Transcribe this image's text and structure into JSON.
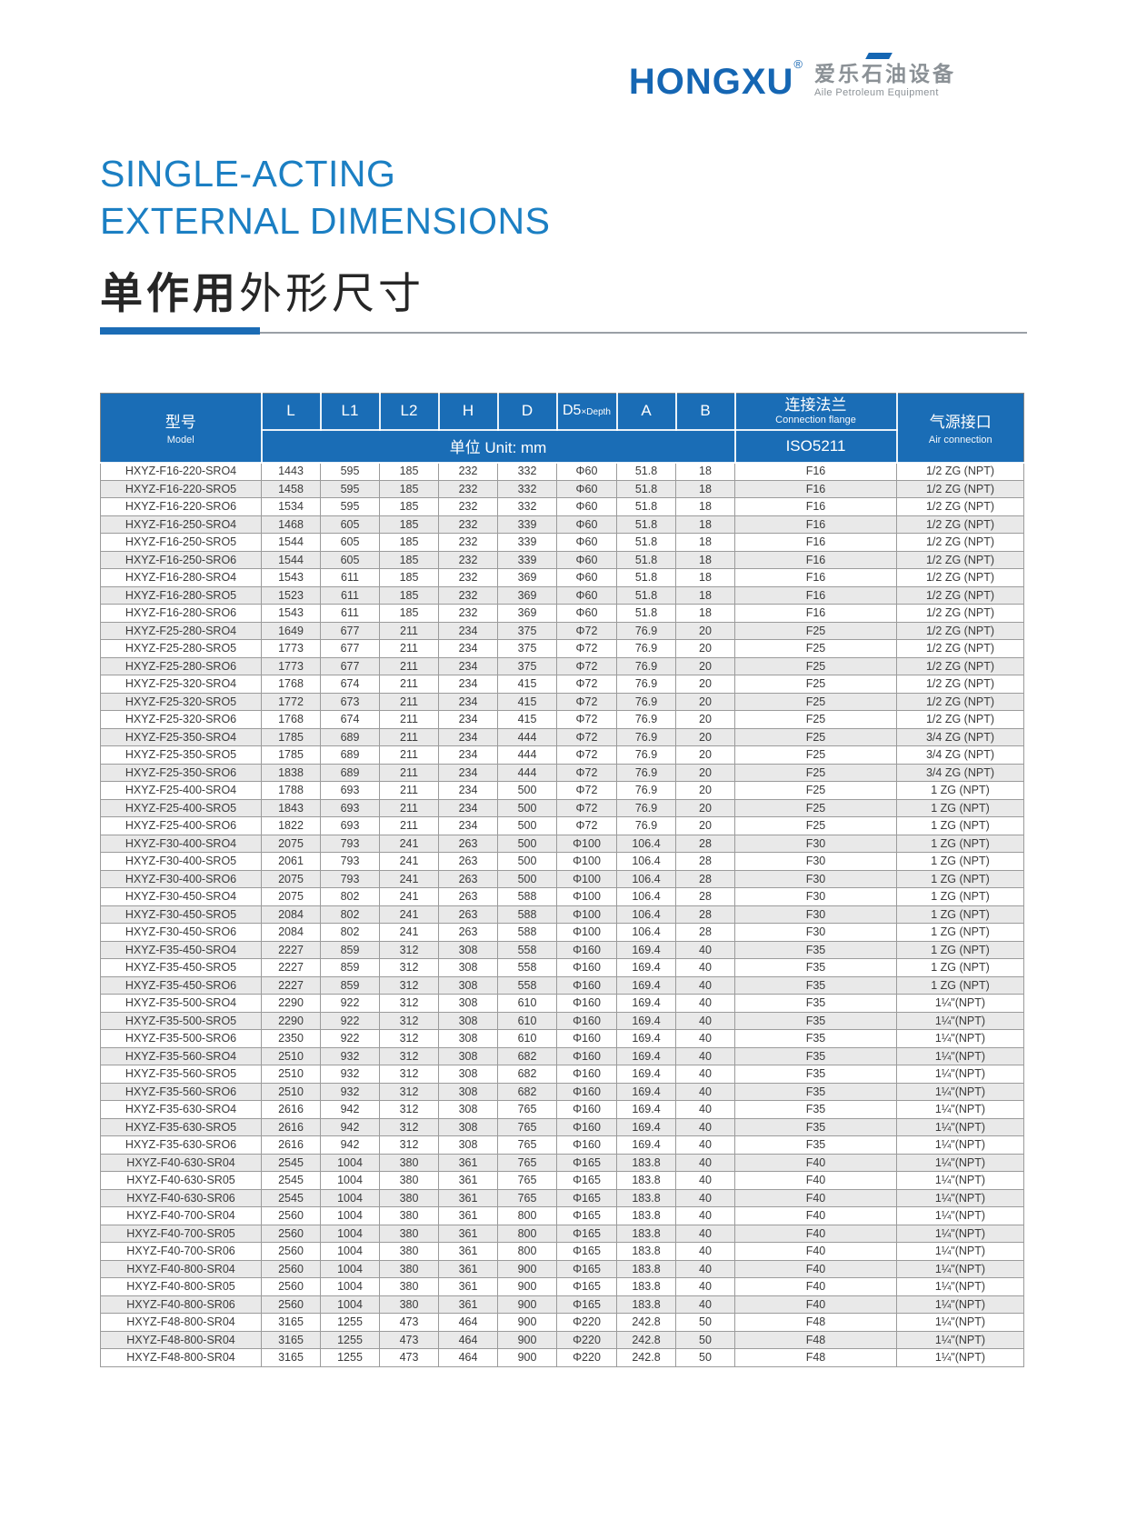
{
  "logo": {
    "brand": "HONGXU",
    "registered": "®",
    "cn": "爱乐石油设备",
    "en": "Aile Petroleum Equipment"
  },
  "title": {
    "line1": "SINGLE-ACTING",
    "line2": "EXTERNAL DIMENSIONS",
    "cn_bold": "单作用",
    "cn_rest": "外形尺寸"
  },
  "colors": {
    "title_blue": "#1b7fc3",
    "header_blue": "#1a6db6",
    "brand_blue": "#1566b3",
    "row_alt": "#e9e9e9"
  },
  "table": {
    "header": {
      "model_cn": "型号",
      "model_en": "Model",
      "dims": [
        "L",
        "L1",
        "L2",
        "H",
        "D"
      ],
      "d5_main": "D5",
      "d5_sub": "×Depth",
      "a": "A",
      "b": "B",
      "flange_cn": "连接法兰",
      "flange_en": "Connection flange",
      "air_cn": "气源接口",
      "air_en": "Air connection",
      "unit": "单位 Unit: mm",
      "iso": "ISO5211"
    },
    "rows": [
      [
        "HXYZ-F16-220-SRO4",
        "1443",
        "595",
        "185",
        "232",
        "332",
        "Φ60",
        "51.8",
        "18",
        "F16",
        "1/2 ZG (NPT)"
      ],
      [
        "HXYZ-F16-220-SRO5",
        "1458",
        "595",
        "185",
        "232",
        "332",
        "Φ60",
        "51.8",
        "18",
        "F16",
        "1/2 ZG (NPT)"
      ],
      [
        "HXYZ-F16-220-SRO6",
        "1534",
        "595",
        "185",
        "232",
        "332",
        "Φ60",
        "51.8",
        "18",
        "F16",
        "1/2 ZG (NPT)"
      ],
      [
        "HXYZ-F16-250-SRO4",
        "1468",
        "605",
        "185",
        "232",
        "339",
        "Φ60",
        "51.8",
        "18",
        "F16",
        "1/2 ZG (NPT)"
      ],
      [
        "HXYZ-F16-250-SRO5",
        "1544",
        "605",
        "185",
        "232",
        "339",
        "Φ60",
        "51.8",
        "18",
        "F16",
        "1/2 ZG (NPT)"
      ],
      [
        "HXYZ-F16-250-SRO6",
        "1544",
        "605",
        "185",
        "232",
        "339",
        "Φ60",
        "51.8",
        "18",
        "F16",
        "1/2 ZG (NPT)"
      ],
      [
        "HXYZ-F16-280-SRO4",
        "1543",
        "611",
        "185",
        "232",
        "369",
        "Φ60",
        "51.8",
        "18",
        "F16",
        "1/2 ZG (NPT)"
      ],
      [
        "HXYZ-F16-280-SRO5",
        "1523",
        "611",
        "185",
        "232",
        "369",
        "Φ60",
        "51.8",
        "18",
        "F16",
        "1/2 ZG (NPT)"
      ],
      [
        "HXYZ-F16-280-SRO6",
        "1543",
        "611",
        "185",
        "232",
        "369",
        "Φ60",
        "51.8",
        "18",
        "F16",
        "1/2 ZG (NPT)"
      ],
      [
        "HXYZ-F25-280-SRO4",
        "1649",
        "677",
        "211",
        "234",
        "375",
        "Φ72",
        "76.9",
        "20",
        "F25",
        "1/2 ZG (NPT)"
      ],
      [
        "HXYZ-F25-280-SRO5",
        "1773",
        "677",
        "211",
        "234",
        "375",
        "Φ72",
        "76.9",
        "20",
        "F25",
        "1/2 ZG (NPT)"
      ],
      [
        "HXYZ-F25-280-SRO6",
        "1773",
        "677",
        "211",
        "234",
        "375",
        "Φ72",
        "76.9",
        "20",
        "F25",
        "1/2 ZG (NPT)"
      ],
      [
        "HXYZ-F25-320-SRO4",
        "1768",
        "674",
        "211",
        "234",
        "415",
        "Φ72",
        "76.9",
        "20",
        "F25",
        "1/2 ZG (NPT)"
      ],
      [
        "HXYZ-F25-320-SRO5",
        "1772",
        "673",
        "211",
        "234",
        "415",
        "Φ72",
        "76.9",
        "20",
        "F25",
        "1/2 ZG (NPT)"
      ],
      [
        "HXYZ-F25-320-SRO6",
        "1768",
        "674",
        "211",
        "234",
        "415",
        "Φ72",
        "76.9",
        "20",
        "F25",
        "1/2 ZG (NPT)"
      ],
      [
        "HXYZ-F25-350-SRO4",
        "1785",
        "689",
        "211",
        "234",
        "444",
        "Φ72",
        "76.9",
        "20",
        "F25",
        "3/4 ZG (NPT)"
      ],
      [
        "HXYZ-F25-350-SRO5",
        "1785",
        "689",
        "211",
        "234",
        "444",
        "Φ72",
        "76.9",
        "20",
        "F25",
        "3/4 ZG (NPT)"
      ],
      [
        "HXYZ-F25-350-SRO6",
        "1838",
        "689",
        "211",
        "234",
        "444",
        "Φ72",
        "76.9",
        "20",
        "F25",
        "3/4 ZG (NPT)"
      ],
      [
        "HXYZ-F25-400-SRO4",
        "1788",
        "693",
        "211",
        "234",
        "500",
        "Φ72",
        "76.9",
        "20",
        "F25",
        "1 ZG (NPT)"
      ],
      [
        "HXYZ-F25-400-SRO5",
        "1843",
        "693",
        "211",
        "234",
        "500",
        "Φ72",
        "76.9",
        "20",
        "F25",
        "1 ZG (NPT)"
      ],
      [
        "HXYZ-F25-400-SRO6",
        "1822",
        "693",
        "211",
        "234",
        "500",
        "Φ72",
        "76.9",
        "20",
        "F25",
        "1 ZG (NPT)"
      ],
      [
        "HXYZ-F30-400-SRO4",
        "2075",
        "793",
        "241",
        "263",
        "500",
        "Φ100",
        "106.4",
        "28",
        "F30",
        "1 ZG (NPT)"
      ],
      [
        "HXYZ-F30-400-SRO5",
        "2061",
        "793",
        "241",
        "263",
        "500",
        "Φ100",
        "106.4",
        "28",
        "F30",
        "1 ZG (NPT)"
      ],
      [
        "HXYZ-F30-400-SRO6",
        "2075",
        "793",
        "241",
        "263",
        "500",
        "Φ100",
        "106.4",
        "28",
        "F30",
        "1 ZG (NPT)"
      ],
      [
        "HXYZ-F30-450-SRO4",
        "2075",
        "802",
        "241",
        "263",
        "588",
        "Φ100",
        "106.4",
        "28",
        "F30",
        "1 ZG (NPT)"
      ],
      [
        "HXYZ-F30-450-SRO5",
        "2084",
        "802",
        "241",
        "263",
        "588",
        "Φ100",
        "106.4",
        "28",
        "F30",
        "1 ZG (NPT)"
      ],
      [
        "HXYZ-F30-450-SRO6",
        "2084",
        "802",
        "241",
        "263",
        "588",
        "Φ100",
        "106.4",
        "28",
        "F30",
        "1 ZG (NPT)"
      ],
      [
        "HXYZ-F35-450-SRO4",
        "2227",
        "859",
        "312",
        "308",
        "558",
        "Φ160",
        "169.4",
        "40",
        "F35",
        "1 ZG (NPT)"
      ],
      [
        "HXYZ-F35-450-SRO5",
        "2227",
        "859",
        "312",
        "308",
        "558",
        "Φ160",
        "169.4",
        "40",
        "F35",
        "1 ZG (NPT)"
      ],
      [
        "HXYZ-F35-450-SRO6",
        "2227",
        "859",
        "312",
        "308",
        "558",
        "Φ160",
        "169.4",
        "40",
        "F35",
        "1 ZG (NPT)"
      ],
      [
        "HXYZ-F35-500-SRO4",
        "2290",
        "922",
        "312",
        "308",
        "610",
        "Φ160",
        "169.4",
        "40",
        "F35",
        "1¼\"(NPT)"
      ],
      [
        "HXYZ-F35-500-SRO5",
        "2290",
        "922",
        "312",
        "308",
        "610",
        "Φ160",
        "169.4",
        "40",
        "F35",
        "1¼\"(NPT)"
      ],
      [
        "HXYZ-F35-500-SRO6",
        "2350",
        "922",
        "312",
        "308",
        "610",
        "Φ160",
        "169.4",
        "40",
        "F35",
        "1¼\"(NPT)"
      ],
      [
        "HXYZ-F35-560-SRO4",
        "2510",
        "932",
        "312",
        "308",
        "682",
        "Φ160",
        "169.4",
        "40",
        "F35",
        "1¼\"(NPT)"
      ],
      [
        "HXYZ-F35-560-SRO5",
        "2510",
        "932",
        "312",
        "308",
        "682",
        "Φ160",
        "169.4",
        "40",
        "F35",
        "1¼\"(NPT)"
      ],
      [
        "HXYZ-F35-560-SRO6",
        "2510",
        "932",
        "312",
        "308",
        "682",
        "Φ160",
        "169.4",
        "40",
        "F35",
        "1¼\"(NPT)"
      ],
      [
        "HXYZ-F35-630-SRO4",
        "2616",
        "942",
        "312",
        "308",
        "765",
        "Φ160",
        "169.4",
        "40",
        "F35",
        "1¼\"(NPT)"
      ],
      [
        "HXYZ-F35-630-SRO5",
        "2616",
        "942",
        "312",
        "308",
        "765",
        "Φ160",
        "169.4",
        "40",
        "F35",
        "1¼\"(NPT)"
      ],
      [
        "HXYZ-F35-630-SRO6",
        "2616",
        "942",
        "312",
        "308",
        "765",
        "Φ160",
        "169.4",
        "40",
        "F35",
        "1¼\"(NPT)"
      ],
      [
        "HXYZ-F40-630-SR04",
        "2545",
        "1004",
        "380",
        "361",
        "765",
        "Φ165",
        "183.8",
        "40",
        "F40",
        "1¼\"(NPT)"
      ],
      [
        "HXYZ-F40-630-SR05",
        "2545",
        "1004",
        "380",
        "361",
        "765",
        "Φ165",
        "183.8",
        "40",
        "F40",
        "1¼\"(NPT)"
      ],
      [
        "HXYZ-F40-630-SR06",
        "2545",
        "1004",
        "380",
        "361",
        "765",
        "Φ165",
        "183.8",
        "40",
        "F40",
        "1¼\"(NPT)"
      ],
      [
        "HXYZ-F40-700-SR04",
        "2560",
        "1004",
        "380",
        "361",
        "800",
        "Φ165",
        "183.8",
        "40",
        "F40",
        "1¼\"(NPT)"
      ],
      [
        "HXYZ-F40-700-SR05",
        "2560",
        "1004",
        "380",
        "361",
        "800",
        "Φ165",
        "183.8",
        "40",
        "F40",
        "1¼\"(NPT)"
      ],
      [
        "HXYZ-F40-700-SR06",
        "2560",
        "1004",
        "380",
        "361",
        "800",
        "Φ165",
        "183.8",
        "40",
        "F40",
        "1¼\"(NPT)"
      ],
      [
        "HXYZ-F40-800-SR04",
        "2560",
        "1004",
        "380",
        "361",
        "900",
        "Φ165",
        "183.8",
        "40",
        "F40",
        "1¼\"(NPT)"
      ],
      [
        "HXYZ-F40-800-SR05",
        "2560",
        "1004",
        "380",
        "361",
        "900",
        "Φ165",
        "183.8",
        "40",
        "F40",
        "1¼\"(NPT)"
      ],
      [
        "HXYZ-F40-800-SR06",
        "2560",
        "1004",
        "380",
        "361",
        "900",
        "Φ165",
        "183.8",
        "40",
        "F40",
        "1¼\"(NPT)"
      ],
      [
        "HXYZ-F48-800-SR04",
        "3165",
        "1255",
        "473",
        "464",
        "900",
        "Φ220",
        "242.8",
        "50",
        "F48",
        "1¼\"(NPT)"
      ],
      [
        "HXYZ-F48-800-SR04",
        "3165",
        "1255",
        "473",
        "464",
        "900",
        "Φ220",
        "242.8",
        "50",
        "F48",
        "1¼\"(NPT)"
      ],
      [
        "HXYZ-F48-800-SR04",
        "3165",
        "1255",
        "473",
        "464",
        "900",
        "Φ220",
        "242.8",
        "50",
        "F48",
        "1¼\"(NPT)"
      ]
    ]
  }
}
